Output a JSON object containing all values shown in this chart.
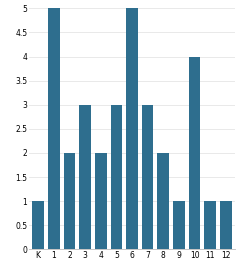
{
  "categories": [
    "K",
    "1",
    "2",
    "3",
    "4",
    "5",
    "6",
    "7",
    "8",
    "9",
    "10",
    "11",
    "12"
  ],
  "values": [
    1,
    5,
    2,
    3,
    2,
    3,
    5,
    3,
    2,
    1,
    4,
    1,
    1
  ],
  "bar_color": "#2e6e8e",
  "ylim": [
    0,
    5
  ],
  "yticks": [
    0,
    0.5,
    1,
    1.5,
    2,
    2.5,
    3,
    3.5,
    4,
    4.5,
    5
  ],
  "background_color": "#ffffff",
  "tick_fontsize": 5.5,
  "bar_width": 0.75
}
